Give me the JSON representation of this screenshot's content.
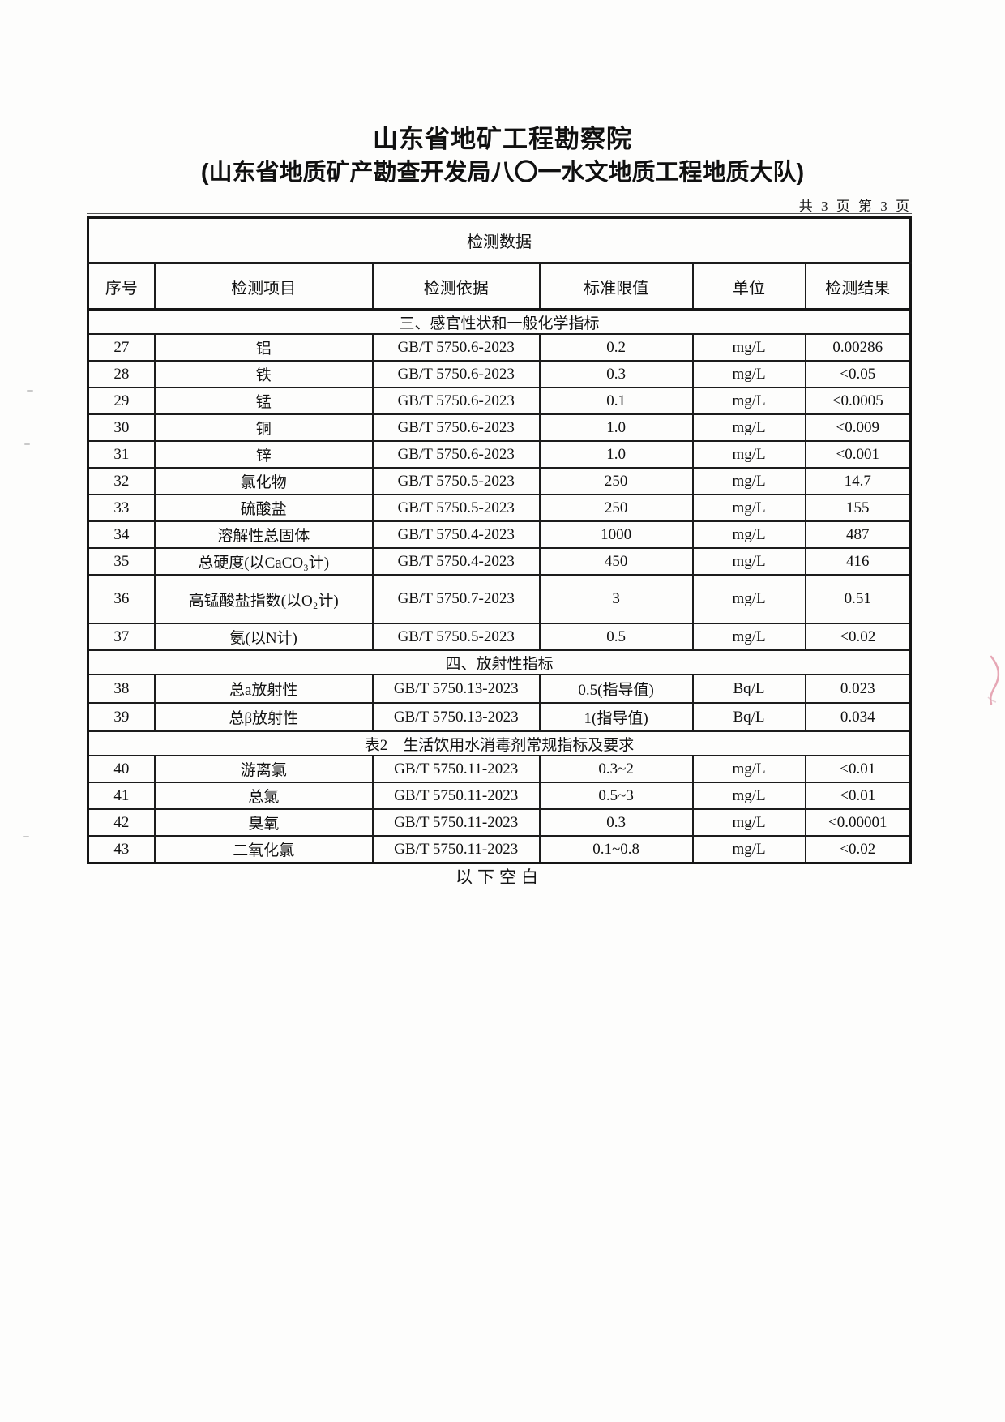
{
  "header": {
    "title": "山东省地矿工程勘察院",
    "subtitle": "(山东省地质矿产勘查开发局八〇一水文地质工程地质大队)",
    "page_info": "共 3 页 第 3 页"
  },
  "table": {
    "caption": "检测数据",
    "columns": [
      "序号",
      "检测项目",
      "检测依据",
      "标准限值",
      "单位",
      "检测结果"
    ],
    "rows": [
      {
        "type": "section",
        "label": "三、感官性状和一般化学指标"
      },
      {
        "type": "data",
        "no": "27",
        "item": "铝",
        "basis": "GB/T 5750.6-2023",
        "limit": "0.2",
        "unit": "mg/L",
        "result": "0.00286"
      },
      {
        "type": "data",
        "no": "28",
        "item": "铁",
        "basis": "GB/T 5750.6-2023",
        "limit": "0.3",
        "unit": "mg/L",
        "result": "<0.05"
      },
      {
        "type": "data",
        "no": "29",
        "item": "锰",
        "basis": "GB/T 5750.6-2023",
        "limit": "0.1",
        "unit": "mg/L",
        "result": "<0.0005"
      },
      {
        "type": "data",
        "no": "30",
        "item": "铜",
        "basis": "GB/T 5750.6-2023",
        "limit": "1.0",
        "unit": "mg/L",
        "result": "<0.009"
      },
      {
        "type": "data",
        "no": "31",
        "item": "锌",
        "basis": "GB/T 5750.6-2023",
        "limit": "1.0",
        "unit": "mg/L",
        "result": "<0.001"
      },
      {
        "type": "data",
        "no": "32",
        "item": "氯化物",
        "basis": "GB/T 5750.5-2023",
        "limit": "250",
        "unit": "mg/L",
        "result": "14.7"
      },
      {
        "type": "data",
        "no": "33",
        "item": "硫酸盐",
        "basis": "GB/T 5750.5-2023",
        "limit": "250",
        "unit": "mg/L",
        "result": "155"
      },
      {
        "type": "data",
        "no": "34",
        "item": "溶解性总固体",
        "basis": "GB/T 5750.4-2023",
        "limit": "1000",
        "unit": "mg/L",
        "result": "487"
      },
      {
        "type": "data",
        "no": "35",
        "item": "总硬度(以CaCO₃计)",
        "basis": "GB/T 5750.4-2023",
        "limit": "450",
        "unit": "mg/L",
        "result": "416"
      },
      {
        "type": "data",
        "no": "36",
        "item": "高锰酸盐指数(以O₂计)",
        "basis": "GB/T 5750.7-2023",
        "limit": "3",
        "unit": "mg/L",
        "result": "0.51",
        "tall": true
      },
      {
        "type": "data",
        "no": "37",
        "item": "氨(以N计)",
        "basis": "GB/T 5750.5-2023",
        "limit": "0.5",
        "unit": "mg/L",
        "result": "<0.02"
      },
      {
        "type": "section",
        "label": "四、放射性指标"
      },
      {
        "type": "data",
        "no": "38",
        "item": "总a放射性",
        "basis": "GB/T 5750.13-2023",
        "limit": "0.5(指导值)",
        "unit": "Bq/L",
        "result": "0.023",
        "mid": true
      },
      {
        "type": "data",
        "no": "39",
        "item": "总β放射性",
        "basis": "GB/T 5750.13-2023",
        "limit": "1(指导值)",
        "unit": "Bq/L",
        "result": "0.034",
        "mid": true
      },
      {
        "type": "section",
        "label": "表2　生活饮用水消毒剂常规指标及要求"
      },
      {
        "type": "data",
        "no": "40",
        "item": "游离氯",
        "basis": "GB/T 5750.11-2023",
        "limit": "0.3~2",
        "unit": "mg/L",
        "result": "<0.01"
      },
      {
        "type": "data",
        "no": "41",
        "item": "总氯",
        "basis": "GB/T 5750.11-2023",
        "limit": "0.5~3",
        "unit": "mg/L",
        "result": "<0.01"
      },
      {
        "type": "data",
        "no": "42",
        "item": "臭氧",
        "basis": "GB/T 5750.11-2023",
        "limit": "0.3",
        "unit": "mg/L",
        "result": "<0.00001"
      },
      {
        "type": "data",
        "no": "43",
        "item": "二氧化氯",
        "basis": "GB/T 5750.11-2023",
        "limit": "0.1~0.8",
        "unit": "mg/L",
        "result": "<0.02"
      }
    ]
  },
  "footer": {
    "blank_note": "以下空白"
  },
  "artifacts": {
    "red_mark_color": "#d4607a"
  }
}
